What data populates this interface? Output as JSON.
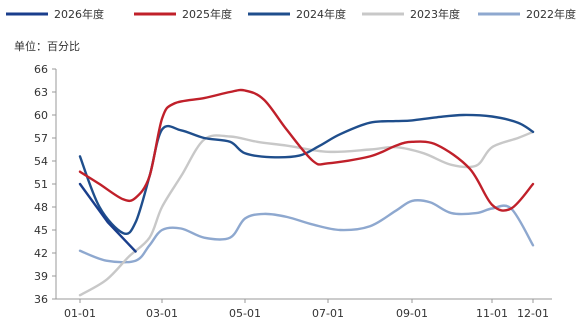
{
  "chart_data": {
    "type": "line",
    "unit_label": "单位：百分比",
    "x_ticks": [
      "01-01",
      "03-01",
      "05-01",
      "07-01",
      "09-01",
      "11-01",
      "12-01"
    ],
    "y_ticks": [
      "36",
      "39",
      "42",
      "45",
      "48",
      "51",
      "54",
      "57",
      "60",
      "63",
      "66"
    ],
    "ylim": [
      36,
      66
    ],
    "legend_position": "top",
    "series": [
      {
        "name": "2026年度",
        "color": "#1a3e8c",
        "x": [
          "01-01",
          "01-21",
          "02-10"
        ],
        "values": [
          51.0,
          46.0,
          42.2
        ]
      },
      {
        "name": "2025年度",
        "color": "#c0202a",
        "x": [
          "01-01",
          "01-15",
          "02-01",
          "02-10",
          "02-20",
          "03-01",
          "03-10",
          "04-01",
          "04-20",
          "05-01",
          "05-15",
          "06-01",
          "06-20",
          "07-01",
          "08-01",
          "08-20",
          "09-01",
          "09-20",
          "10-15",
          "11-01",
          "11-15",
          "12-01"
        ],
        "values": [
          52.6,
          51.0,
          49.0,
          49.2,
          52.0,
          59.5,
          61.5,
          62.2,
          63.0,
          63.2,
          62.0,
          58.0,
          54.0,
          53.7,
          54.6,
          56.0,
          56.5,
          56.1,
          53.0,
          48.3,
          47.8,
          51.0
        ]
      },
      {
        "name": "2024年度",
        "color": "#1f4e8c",
        "x": [
          "01-01",
          "01-15",
          "02-01",
          "02-10",
          "02-20",
          "03-01",
          "03-15",
          "04-01",
          "04-20",
          "05-01",
          "05-20",
          "06-10",
          "06-25",
          "07-10",
          "08-01",
          "08-20",
          "09-01",
          "09-20",
          "10-10",
          "11-01",
          "11-20",
          "12-01"
        ],
        "values": [
          54.6,
          48.0,
          44.6,
          46.0,
          52.0,
          58.1,
          58.0,
          57.0,
          56.5,
          55.0,
          54.5,
          54.7,
          56.0,
          57.5,
          59.0,
          59.2,
          59.3,
          59.7,
          60.0,
          59.8,
          59.0,
          57.8
        ]
      },
      {
        "name": "2023年度",
        "color": "#c8c8c8",
        "x": [
          "01-01",
          "01-20",
          "02-05",
          "02-20",
          "03-01",
          "03-15",
          "04-01",
          "04-20",
          "05-10",
          "06-01",
          "07-01",
          "08-01",
          "08-20",
          "09-10",
          "10-01",
          "10-20",
          "11-01",
          "11-20",
          "12-01"
        ],
        "values": [
          36.5,
          38.5,
          41.5,
          44.0,
          48.0,
          52.0,
          56.8,
          57.2,
          56.5,
          56.0,
          55.2,
          55.5,
          55.8,
          55.0,
          53.5,
          53.4,
          55.8,
          57.0,
          57.8
        ]
      },
      {
        "name": "2022年度",
        "color": "#8ea8cf",
        "x": [
          "01-01",
          "01-20",
          "02-10",
          "02-20",
          "03-01",
          "03-15",
          "04-01",
          "04-20",
          "05-01",
          "05-15",
          "06-01",
          "06-20",
          "07-10",
          "08-01",
          "08-20",
          "09-01",
          "09-15",
          "10-01",
          "10-20",
          "11-01",
          "11-15",
          "12-01"
        ],
        "values": [
          42.3,
          41.0,
          41.0,
          43.0,
          45.0,
          45.2,
          44.0,
          44.0,
          46.5,
          47.1,
          46.7,
          45.7,
          45.0,
          45.5,
          47.5,
          48.8,
          48.6,
          47.2,
          47.2,
          47.8,
          47.8,
          43.0
        ]
      }
    ]
  }
}
